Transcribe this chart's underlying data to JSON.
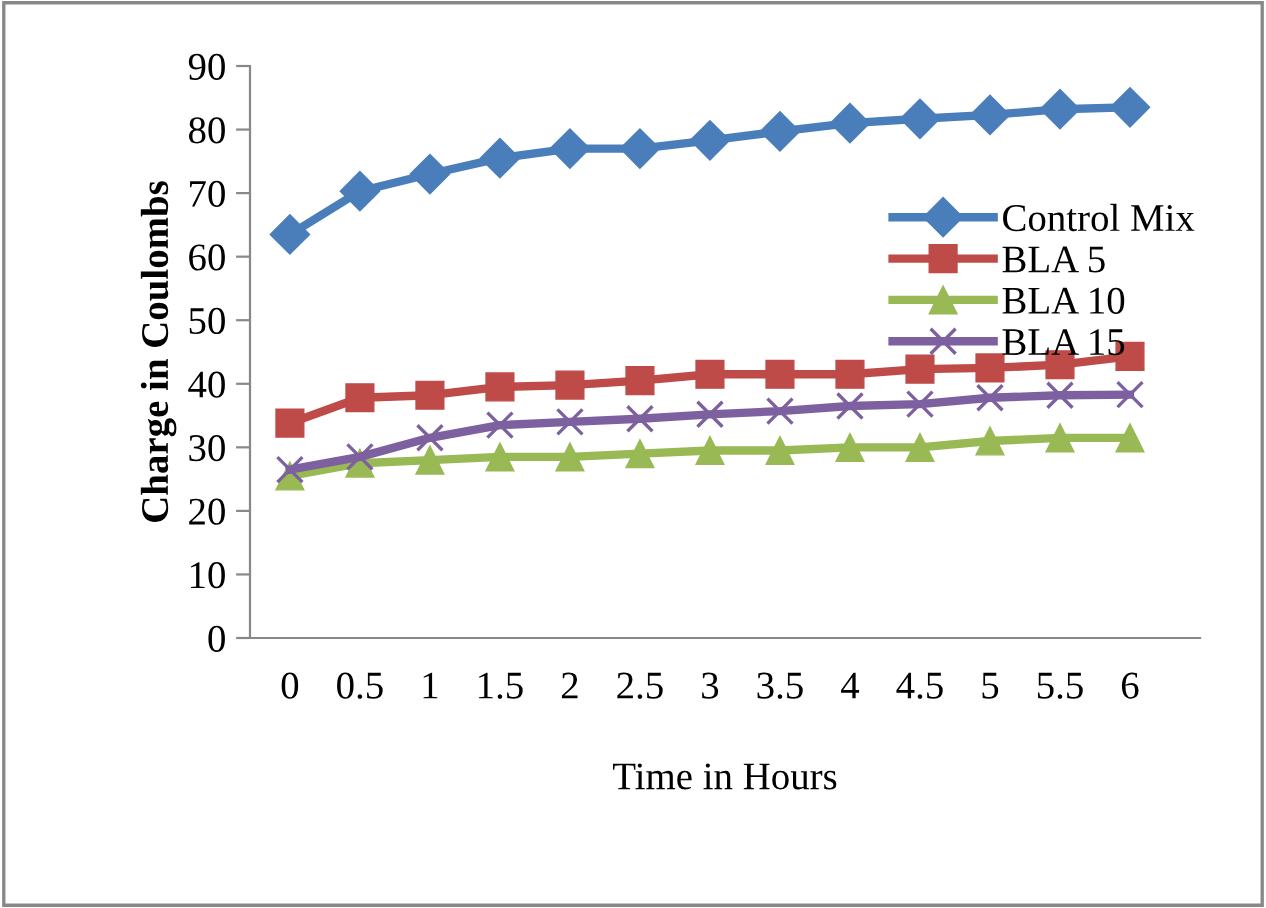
{
  "chart_data": {
    "type": "line",
    "xlabel": "Time in Hours",
    "ylabel": "Charge in Coulombs",
    "categories": [
      "0",
      "0.5",
      "1",
      "1.5",
      "2",
      "2.5",
      "3",
      "3.5",
      "4",
      "4.5",
      "5",
      "5.5",
      "6"
    ],
    "series": [
      {
        "name": "Control Mix",
        "color": "#4a7ebb",
        "marker": "diamond",
        "values": [
          63.5,
          70.3,
          73,
          75.5,
          77,
          77,
          78.3,
          79.7,
          81,
          81.7,
          82.3,
          83.2,
          83.5
        ]
      },
      {
        "name": "BLA 5",
        "color": "#be4b48",
        "marker": "square",
        "values": [
          33.8,
          37.8,
          38.2,
          39.5,
          39.8,
          40.5,
          41.5,
          41.5,
          41.5,
          42.3,
          42.5,
          43,
          44.3
        ]
      },
      {
        "name": "BLA 10",
        "color": "#98b954",
        "marker": "triangle",
        "values": [
          25.5,
          27.5,
          28,
          28.5,
          28.5,
          29,
          29.5,
          29.5,
          30,
          30,
          31,
          31.5,
          31.5
        ]
      },
      {
        "name": "BLA 15",
        "color": "#7d60a0",
        "marker": "cross",
        "values": [
          26.5,
          28.5,
          31.5,
          33.5,
          34,
          34.5,
          35.2,
          35.7,
          36.5,
          36.8,
          37.8,
          38.2,
          38.3
        ]
      }
    ],
    "ylim": [
      0,
      90
    ],
    "yticks": [
      0,
      10,
      20,
      30,
      40,
      50,
      60,
      70,
      80,
      90
    ],
    "grid": false,
    "legend": "right"
  }
}
